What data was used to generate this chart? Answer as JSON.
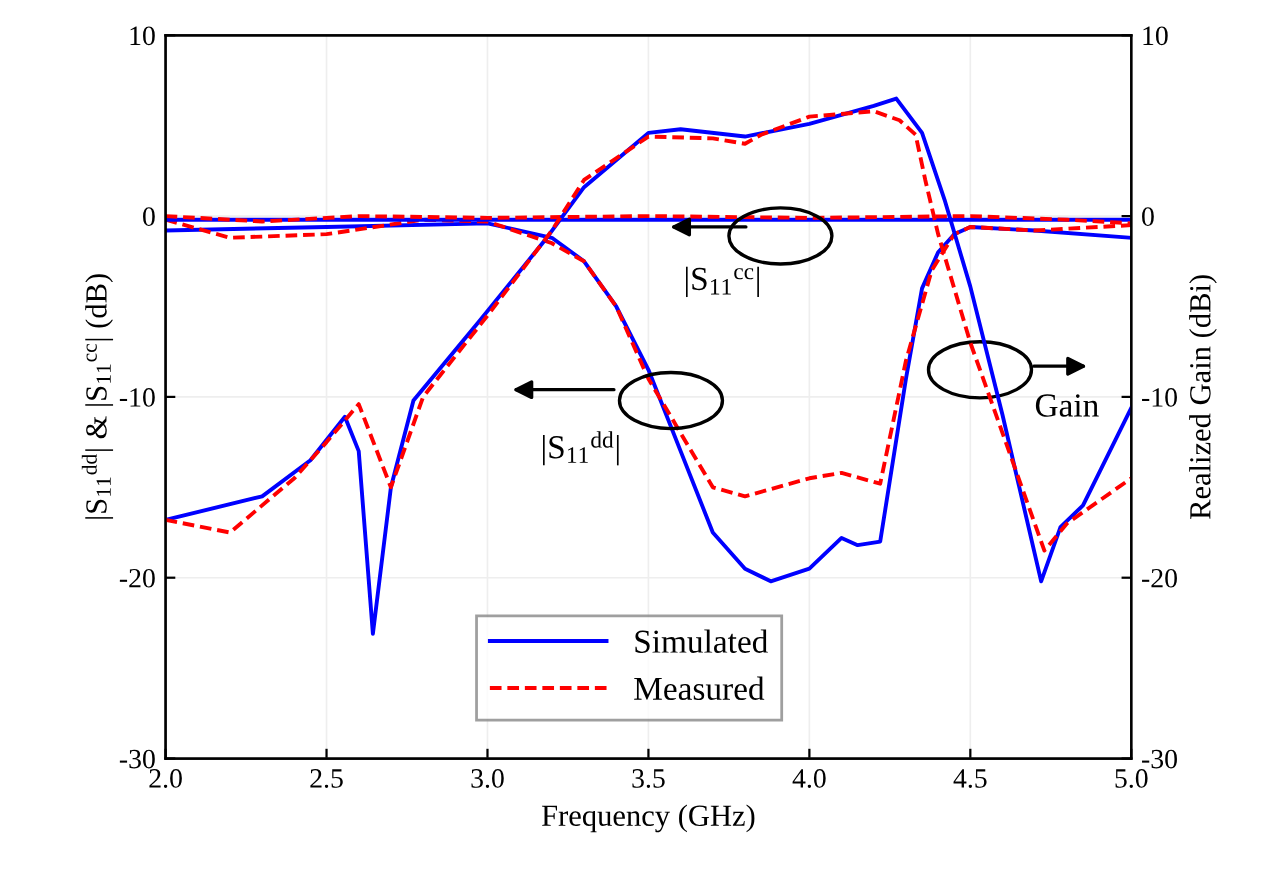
{
  "chart_data": {
    "type": "line",
    "xlabel": "Frequency (GHz)",
    "ylabel": "|S$_{11}$$^{dd}$| & |S$_{11}$$^{cc}$| (dB)",
    "y2label": "Realized Gain (dBi)",
    "xlim": [
      2.0,
      5.0
    ],
    "xticks": [
      {
        "value": 2.0,
        "label": "2.0"
      },
      {
        "value": 2.5,
        "label": "2.5"
      },
      {
        "value": 3.0,
        "label": "3.0"
      },
      {
        "value": 3.5,
        "label": "3.5"
      },
      {
        "value": 4.0,
        "label": "4.0"
      },
      {
        "value": 4.5,
        "label": "4.5"
      },
      {
        "value": 5.0,
        "label": "5.0"
      }
    ],
    "ylim": [
      -30,
      10
    ],
    "yticks": [
      -30,
      -20,
      -10,
      0,
      10
    ],
    "y2lim": [
      -30,
      10
    ],
    "y2ticks": [
      -30,
      -20,
      -10,
      0,
      10
    ],
    "grid": true,
    "legend": "bottom",
    "series": [
      {
        "name": "Simulated",
        "color": "#0000ff",
        "line_style": "solid",
        "x": [
          2.0,
          2.5,
          3.0,
          3.2,
          3.3,
          3.4,
          3.5,
          3.6,
          3.7,
          3.8,
          3.88,
          4.0,
          4.1,
          4.15,
          4.22,
          4.3,
          4.35,
          4.4,
          4.45,
          4.5,
          4.7,
          5.0
        ],
        "values": [
          -0.8,
          -0.6,
          -0.4,
          -1.2,
          -2.5,
          -5,
          -8.5,
          -13,
          -17.5,
          -19.5,
          -20.2,
          -19.5,
          -17.8,
          -18.2,
          -18,
          -9,
          -4,
          -2,
          -1,
          -0.6,
          -0.8,
          -1.2
        ]
      },
      {
        "name": "Measured",
        "color": "#ff0000",
        "line_style": "dashed",
        "x": [
          2.0,
          2.2,
          2.5,
          2.8,
          3.0,
          3.2,
          3.3,
          3.4,
          3.5,
          3.6,
          3.7,
          3.8,
          4.0,
          4.1,
          4.22,
          4.3,
          4.38,
          4.45,
          4.5,
          4.7,
          5.0
        ],
        "values": [
          -0.2,
          -1.2,
          -1.0,
          -0.2,
          -0.3,
          -1.5,
          -2.5,
          -5,
          -9,
          -12,
          -15,
          -15.5,
          -14.5,
          -14.2,
          -14.8,
          -8,
          -3,
          -1,
          -0.6,
          -0.8,
          -0.5
        ]
      },
      {
        "color": "#0000ff",
        "line_style": "solid",
        "x": [
          2.0,
          3.0,
          4.0,
          5.0
        ],
        "values": [
          -0.2,
          -0.2,
          -0.2,
          -0.2
        ]
      },
      {
        "color": "#ff0000",
        "line_style": "dashed",
        "x": [
          2.0,
          2.3,
          2.6,
          3.0,
          3.5,
          4.0,
          4.5,
          4.8,
          5.0
        ],
        "values": [
          0.0,
          -0.3,
          0.0,
          -0.1,
          0.0,
          -0.1,
          0.0,
          -0.2,
          -0.4
        ]
      },
      {
        "color": "#0000ff",
        "line_style": "solid",
        "axis": "y2",
        "x": [
          2.0,
          2.3,
          2.45,
          2.557,
          2.6,
          2.644,
          2.7,
          2.77,
          2.975,
          3.18,
          3.3,
          3.5,
          3.6,
          3.8,
          4.0,
          4.2,
          4.27,
          4.35,
          4.42,
          4.5,
          4.6,
          4.72,
          4.78,
          4.85,
          5.0
        ],
        "values": [
          -16.8,
          -15.5,
          -13.5,
          -11.1,
          -13,
          -23.1,
          -15,
          -10.2,
          -5.8,
          -1.3,
          1.6,
          4.6,
          4.8,
          4.4,
          5.1,
          6.1,
          6.5,
          4.6,
          0.9,
          -3.9,
          -11,
          -20.2,
          -17.2,
          -16,
          -10.6
        ]
      },
      {
        "color": "#ff0000",
        "line_style": "dashed",
        "axis": "y2",
        "x": [
          2.0,
          2.2,
          2.4,
          2.5,
          2.6,
          2.7,
          2.8,
          3.0,
          3.2,
          3.3,
          3.5,
          3.7,
          3.8,
          3.85,
          4.0,
          4.2,
          4.28,
          4.33,
          4.36,
          4.4,
          4.5,
          4.6,
          4.7,
          4.73,
          4.8,
          5.0
        ],
        "values": [
          -16.8,
          -17.5,
          -14.5,
          -12.5,
          -10.4,
          -15,
          -10,
          -5.5,
          -0.8,
          2,
          4.4,
          4.3,
          4.0,
          4.5,
          5.5,
          5.8,
          5.3,
          4.5,
          2,
          -1,
          -7,
          -12,
          -17,
          -18.5,
          -17,
          -14.5
        ]
      }
    ],
    "annotations": [
      {
        "text": "|S$_{11}$$^{cc}$|",
        "x": 3.91,
        "y": -0.2
      },
      {
        "text": "|S$_{11}$$^{dd}$|",
        "x": 3.57,
        "y": -10.2
      },
      {
        "text": "Gain",
        "x": 4.53,
        "y": -8.5
      }
    ]
  }
}
